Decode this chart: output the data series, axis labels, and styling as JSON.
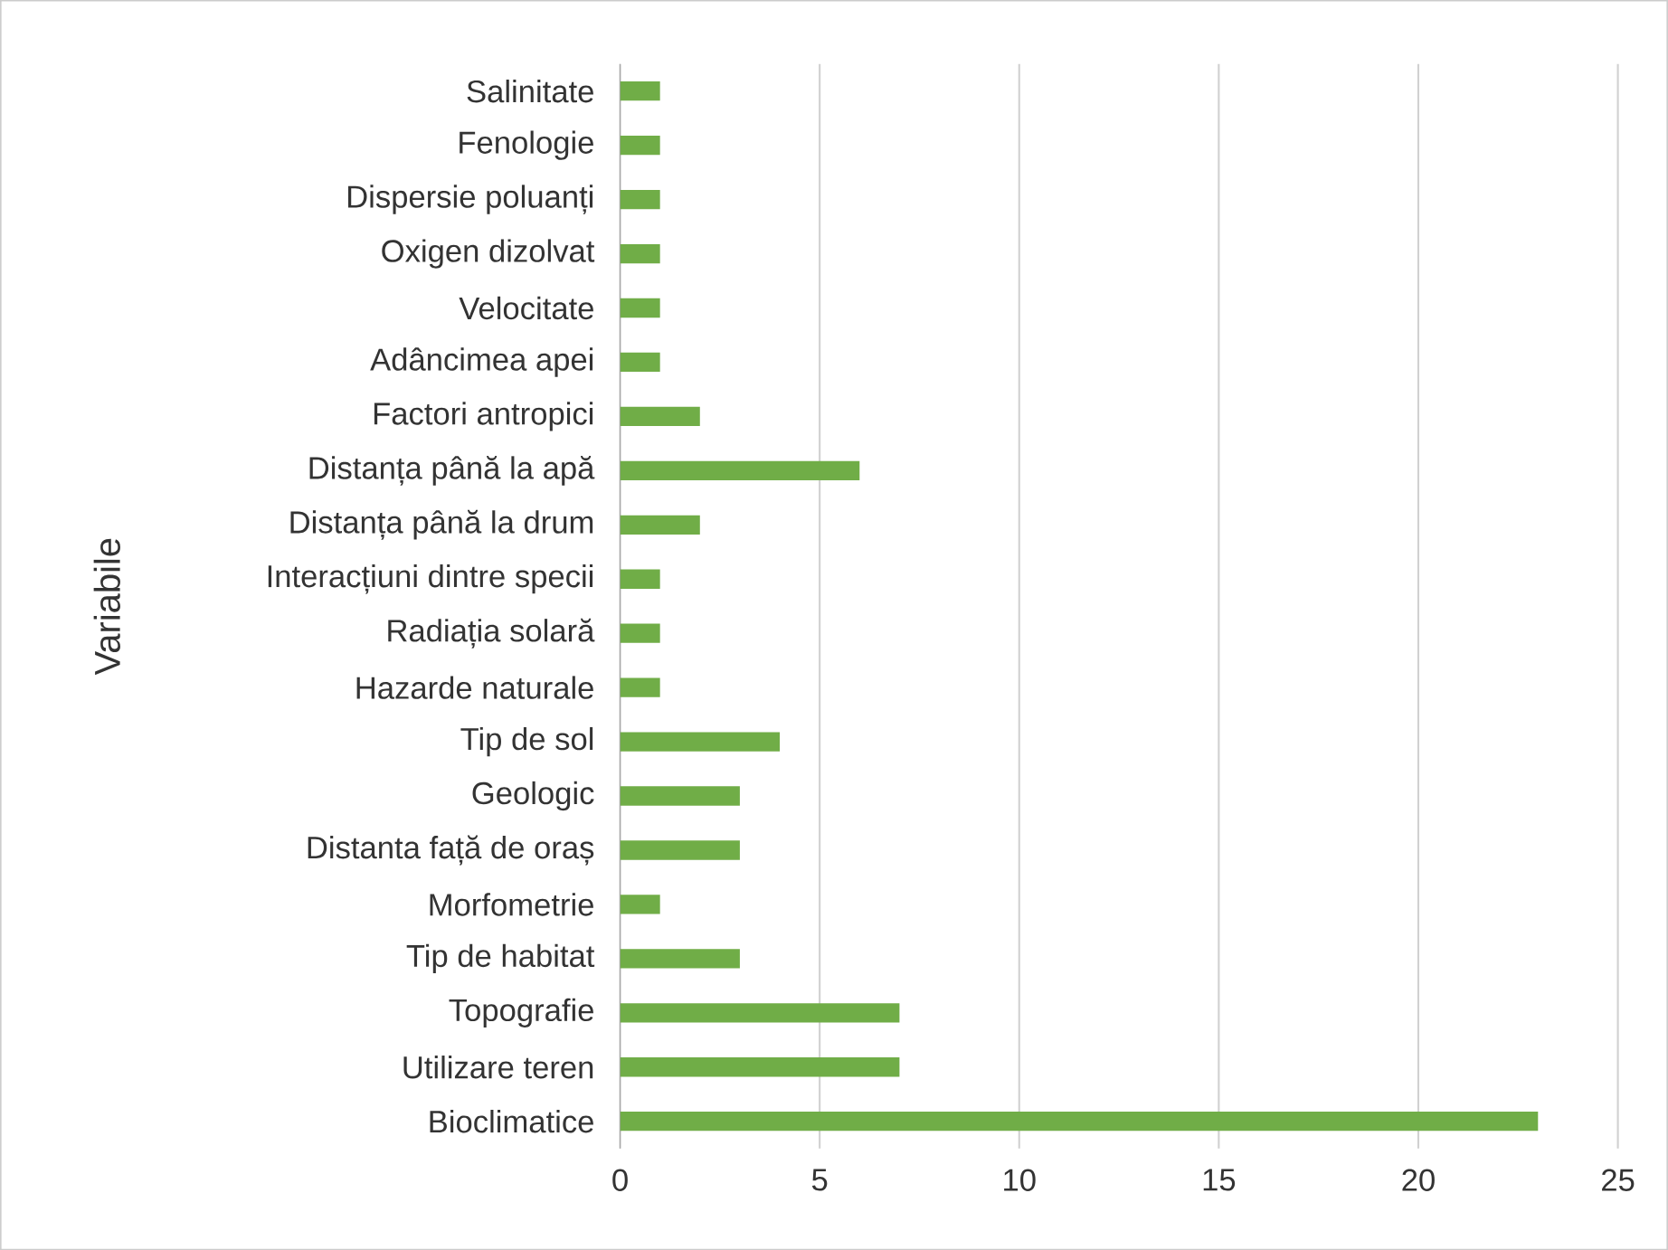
{
  "chart_data": {
    "type": "bar",
    "orientation": "horizontal",
    "ylabel": "Variabile",
    "categories": [
      "Salinitate",
      "Fenologie",
      "Dispersie poluanți",
      "Oxigen dizolvat",
      "Velocitate",
      "Adâncimea apei",
      "Factori antropici",
      "Distanța până la apă",
      "Distanța până la drum",
      "Interacțiuni dintre specii",
      "Radiația solară",
      "Hazarde naturale",
      "Tip de sol",
      "Geologic",
      "Distanta față de oraș",
      "Morfometrie",
      "Tip de habitat",
      "Topografie",
      "Utilizare teren",
      "Bioclimatice"
    ],
    "values": [
      1,
      1,
      1,
      1,
      1,
      1,
      2,
      6,
      2,
      1,
      1,
      1,
      4,
      3,
      3,
      1,
      3,
      7,
      7,
      23
    ],
    "color": "#70ad47",
    "xlim": [
      0,
      25
    ],
    "xticks": [
      0,
      5,
      10,
      15,
      20,
      25
    ],
    "grid": "x"
  }
}
